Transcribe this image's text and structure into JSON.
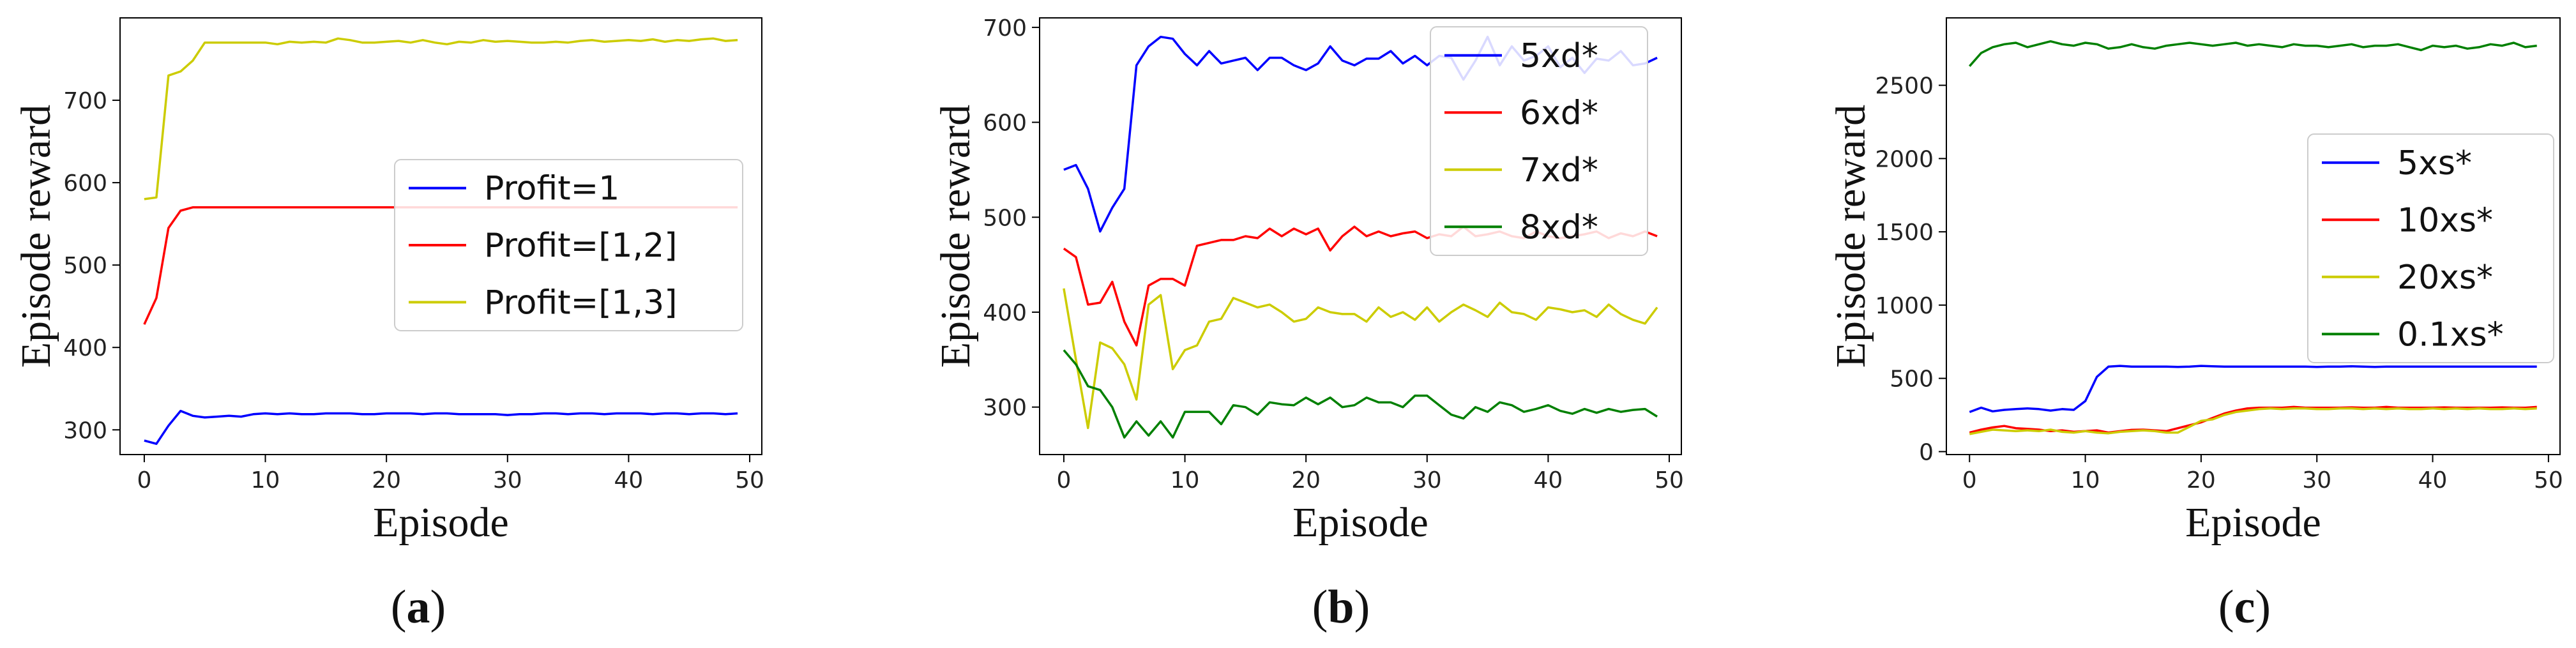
{
  "chart_data": [
    {
      "type": "line",
      "xlabel": "Episode",
      "ylabel": "Episode reward",
      "xlim": [
        -2,
        51
      ],
      "ylim": [
        270,
        800
      ],
      "xticks": [
        0,
        10,
        20,
        30,
        40,
        50
      ],
      "yticks": [
        300,
        400,
        500,
        600,
        700
      ],
      "legend_position": "center-right",
      "caption_letter": "a",
      "series": [
        {
          "name": "Profit=1",
          "color": "#0000ff",
          "values": [
            287,
            283,
            305,
            323,
            317,
            315,
            316,
            317,
            316,
            319,
            320,
            319,
            320,
            319,
            319,
            320,
            320,
            320,
            319,
            319,
            320,
            320,
            320,
            319,
            320,
            320,
            319,
            319,
            319,
            319,
            318,
            319,
            319,
            320,
            320,
            319,
            320,
            320,
            319,
            320,
            320,
            320,
            319,
            320,
            320,
            319,
            320,
            320,
            319,
            320
          ]
        },
        {
          "name": "Profit=[1,2]",
          "color": "#ff0000",
          "values": [
            428,
            460,
            545,
            566,
            570,
            570,
            570,
            570,
            570,
            570,
            570,
            570,
            570,
            570,
            570,
            570,
            570,
            570,
            570,
            570,
            570,
            570,
            570,
            570,
            570,
            570,
            570,
            570,
            570,
            570,
            570,
            570,
            570,
            570,
            570,
            570,
            570,
            570,
            570,
            570,
            570,
            570,
            570,
            570,
            570,
            570,
            570,
            570,
            570,
            570
          ]
        },
        {
          "name": "Profit=[1,3]",
          "color": "#cccc00",
          "values": [
            580,
            582,
            730,
            735,
            748,
            770,
            770,
            770,
            770,
            770,
            770,
            768,
            771,
            770,
            771,
            770,
            775,
            773,
            770,
            770,
            771,
            772,
            770,
            773,
            770,
            768,
            771,
            770,
            773,
            771,
            772,
            771,
            770,
            770,
            771,
            770,
            772,
            773,
            771,
            772,
            773,
            772,
            774,
            771,
            773,
            772,
            774,
            775,
            772,
            773
          ]
        }
      ]
    },
    {
      "type": "line",
      "xlabel": "Episode",
      "ylabel": "Episode reward",
      "xlim": [
        -2,
        51
      ],
      "ylim": [
        250,
        710
      ],
      "xticks": [
        0,
        10,
        20,
        30,
        40,
        50
      ],
      "yticks": [
        300,
        400,
        500,
        600,
        700
      ],
      "legend_position": "top-right",
      "caption_letter": "b",
      "series": [
        {
          "name": "5xd*",
          "color": "#0000ff",
          "values": [
            550,
            555,
            530,
            485,
            510,
            530,
            660,
            680,
            690,
            688,
            672,
            660,
            675,
            662,
            665,
            668,
            655,
            668,
            668,
            660,
            655,
            662,
            680,
            665,
            660,
            667,
            667,
            675,
            662,
            670,
            660,
            670,
            668,
            645,
            665,
            690,
            660,
            680,
            665,
            670,
            680,
            658,
            668,
            652,
            667,
            665,
            675,
            660,
            662,
            668
          ]
        },
        {
          "name": "6xd*",
          "color": "#ff0000",
          "values": [
            467,
            458,
            408,
            410,
            432,
            390,
            365,
            428,
            435,
            435,
            428,
            470,
            473,
            476,
            476,
            480,
            478,
            488,
            480,
            488,
            482,
            488,
            465,
            480,
            490,
            480,
            485,
            480,
            483,
            485,
            478,
            482,
            480,
            490,
            480,
            482,
            485,
            480,
            478,
            485,
            480,
            478,
            480,
            482,
            485,
            478,
            483,
            480,
            485,
            480
          ]
        },
        {
          "name": "7xd*",
          "color": "#cccc00",
          "values": [
            425,
            350,
            278,
            368,
            362,
            345,
            308,
            408,
            418,
            340,
            360,
            365,
            390,
            393,
            415,
            410,
            405,
            408,
            400,
            390,
            393,
            405,
            400,
            398,
            398,
            390,
            405,
            395,
            400,
            392,
            405,
            390,
            400,
            408,
            402,
            395,
            410,
            400,
            398,
            392,
            405,
            403,
            400,
            402,
            395,
            408,
            398,
            392,
            388,
            405
          ]
        },
        {
          "name": "8xd*",
          "color": "#008000",
          "values": [
            360,
            345,
            322,
            318,
            300,
            268,
            285,
            270,
            285,
            268,
            295,
            295,
            295,
            282,
            302,
            300,
            292,
            305,
            303,
            302,
            310,
            303,
            310,
            300,
            302,
            310,
            305,
            305,
            300,
            312,
            312,
            302,
            292,
            288,
            300,
            295,
            305,
            302,
            295,
            298,
            302,
            296,
            293,
            298,
            294,
            298,
            295,
            297,
            298,
            290
          ]
        }
      ]
    },
    {
      "type": "line",
      "xlabel": "Episode",
      "ylabel": "Episode reward",
      "xlim": [
        -2,
        51
      ],
      "ylim": [
        -20,
        2960
      ],
      "xticks": [
        0,
        10,
        20,
        30,
        40,
        50
      ],
      "yticks": [
        0,
        500,
        1000,
        1500,
        2000,
        2500
      ],
      "legend_position": "center-right",
      "caption_letter": "c",
      "series": [
        {
          "name": "5xs*",
          "color": "#0000ff",
          "values": [
            270,
            300,
            275,
            285,
            290,
            295,
            290,
            280,
            290,
            285,
            345,
            510,
            580,
            585,
            580,
            580,
            580,
            580,
            578,
            580,
            585,
            582,
            580,
            580,
            580,
            580,
            580,
            580,
            580,
            580,
            578,
            580,
            580,
            582,
            580,
            578,
            580,
            580,
            580,
            580,
            580,
            580,
            580,
            580,
            580,
            580,
            580,
            580,
            580,
            580
          ]
        },
        {
          "name": "10xs*",
          "color": "#ff0000",
          "values": [
            130,
            150,
            165,
            175,
            160,
            155,
            150,
            140,
            145,
            135,
            140,
            145,
            130,
            140,
            148,
            150,
            145,
            140,
            160,
            180,
            200,
            230,
            260,
            280,
            295,
            300,
            300,
            300,
            305,
            300,
            300,
            300,
            300,
            302,
            300,
            300,
            305,
            300,
            300,
            300,
            300,
            302,
            300,
            300,
            300,
            300,
            302,
            300,
            300,
            305
          ]
        },
        {
          "name": "20xs*",
          "color": "#cccc00",
          "values": [
            120,
            135,
            150,
            145,
            140,
            145,
            140,
            150,
            135,
            130,
            140,
            130,
            125,
            135,
            140,
            145,
            140,
            130,
            130,
            170,
            210,
            220,
            250,
            270,
            280,
            290,
            295,
            290,
            295,
            295,
            290,
            290,
            295,
            295,
            290,
            295,
            290,
            295,
            290,
            290,
            295,
            290,
            295,
            290,
            295,
            290,
            290,
            295,
            290,
            295
          ]
        },
        {
          "name": "0.1xs*",
          "color": "#008000",
          "values": [
            2630,
            2720,
            2760,
            2780,
            2790,
            2760,
            2780,
            2800,
            2780,
            2770,
            2790,
            2780,
            2750,
            2760,
            2780,
            2760,
            2750,
            2770,
            2780,
            2790,
            2780,
            2770,
            2780,
            2790,
            2770,
            2780,
            2770,
            2760,
            2780,
            2770,
            2770,
            2760,
            2770,
            2780,
            2760,
            2770,
            2770,
            2780,
            2760,
            2740,
            2770,
            2760,
            2770,
            2750,
            2760,
            2780,
            2770,
            2790,
            2760,
            2770
          ]
        }
      ]
    }
  ]
}
